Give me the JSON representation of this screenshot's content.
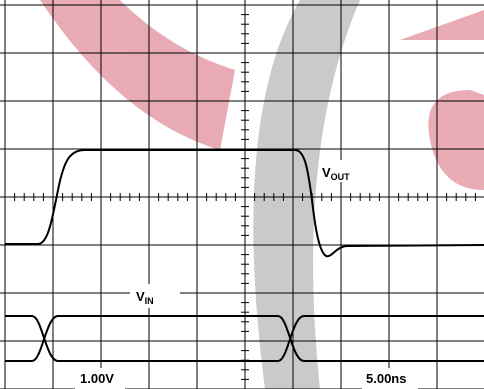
{
  "labels": {
    "vout": {
      "main": "V",
      "sub": "OUT"
    },
    "vin": {
      "main": "V",
      "sub": "IN"
    },
    "vertical_scale": "1.00V",
    "time_scale": "5.00ns"
  }
}
